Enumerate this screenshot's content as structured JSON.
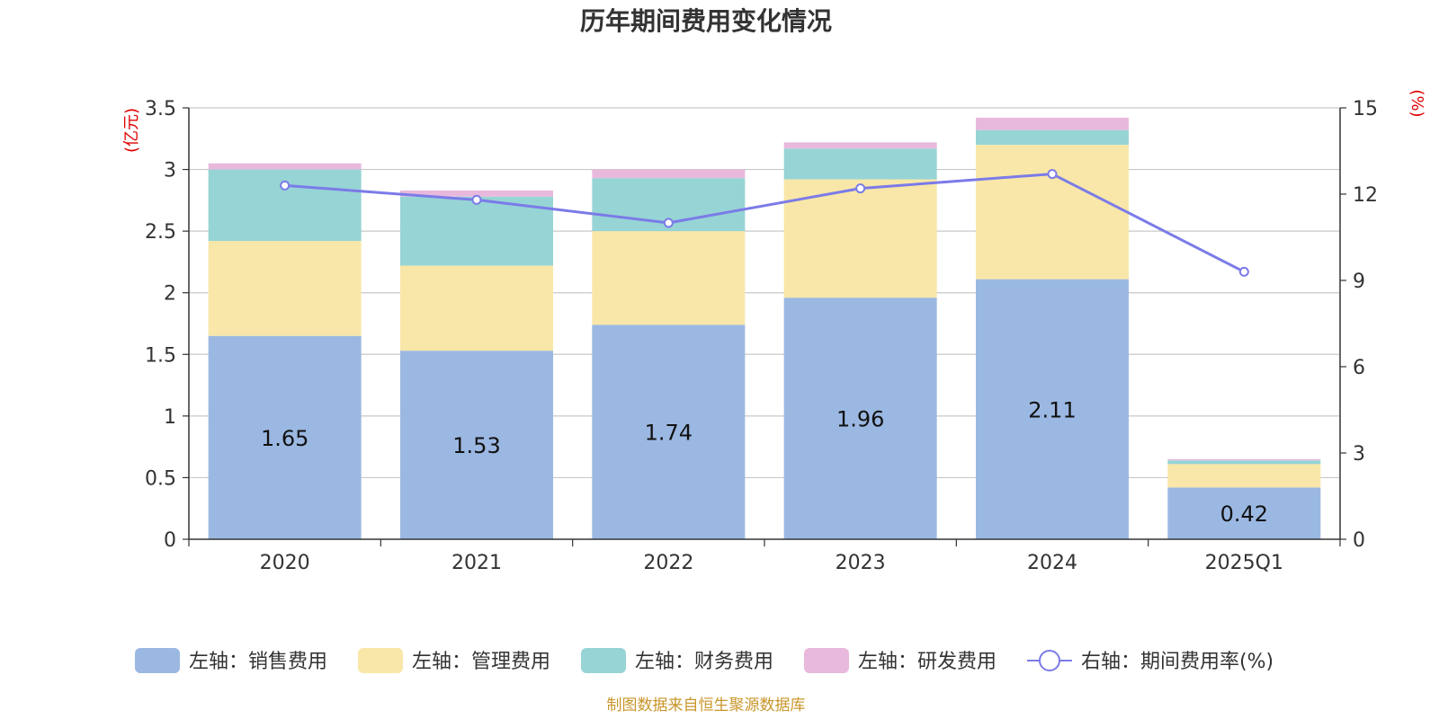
{
  "chart_data": {
    "type": "bar",
    "title": "历年期间费用变化情况",
    "categories": [
      "2020",
      "2021",
      "2022",
      "2023",
      "2024",
      "2025Q1"
    ],
    "y_left": {
      "unit": "(亿元)",
      "ylim": [
        0,
        3.5
      ],
      "ticks": [
        "0",
        "0.5",
        "1",
        "1.5",
        "2",
        "2.5",
        "3",
        "3.5"
      ]
    },
    "y_right": {
      "unit": "(%)",
      "ylim": [
        0,
        15
      ],
      "ticks": [
        "0",
        "3",
        "6",
        "9",
        "12",
        "15"
      ]
    },
    "series": [
      {
        "name": "左轴：销售费用",
        "type": "bar",
        "axis": "left",
        "color": "#9bb8e2",
        "values": [
          1.65,
          1.53,
          1.74,
          1.96,
          2.11,
          0.42
        ],
        "labels": [
          "1.65",
          "1.53",
          "1.74",
          "1.96",
          "2.11",
          "0.42"
        ]
      },
      {
        "name": "左轴：管理费用",
        "type": "bar",
        "axis": "left",
        "color": "#f8e7a8",
        "values": [
          0.77,
          0.69,
          0.76,
          0.96,
          1.09,
          0.19
        ]
      },
      {
        "name": "左轴：财务费用",
        "type": "bar",
        "axis": "left",
        "color": "#97d4d5",
        "values": [
          0.58,
          0.56,
          0.43,
          0.25,
          0.12,
          0.03
        ]
      },
      {
        "name": "左轴：研发费用",
        "type": "bar",
        "axis": "left",
        "color": "#e8b9dc",
        "values": [
          0.05,
          0.05,
          0.07,
          0.05,
          0.1,
          0.01
        ]
      },
      {
        "name": "右轴：期间费用率(%)",
        "type": "line",
        "axis": "right",
        "color": "#7b7be8",
        "values": [
          12.3,
          11.8,
          11.0,
          12.2,
          12.7,
          9.3
        ]
      }
    ],
    "grid": true,
    "legend": "bottom"
  },
  "source": "制图数据来自恒生聚源数据库"
}
